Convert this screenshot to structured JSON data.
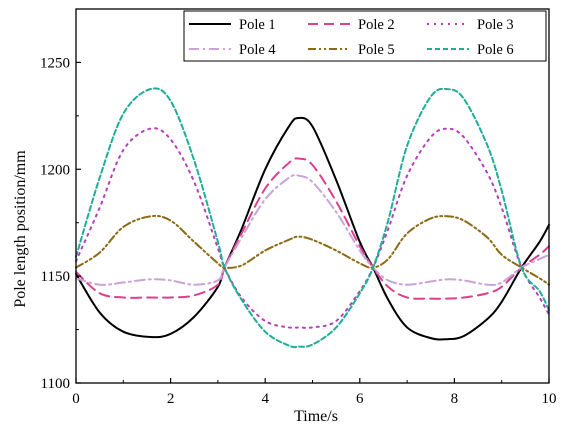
{
  "chart_data": {
    "type": "line",
    "title": "",
    "xlabel": "Time/s",
    "ylabel": "Pole length position/mm",
    "xlim": [
      0,
      10
    ],
    "ylim": [
      1100,
      1275
    ],
    "xticks": [
      0,
      2,
      4,
      6,
      8,
      10
    ],
    "yticks": [
      1100,
      1150,
      1200,
      1250
    ],
    "legend_position": "top-right",
    "grid": false,
    "series": [
      {
        "name": "Pole 1",
        "color": "#000000",
        "dash": "solid",
        "x": [
          0,
          0.5,
          1,
          1.57,
          2,
          2.5,
          3,
          3.14,
          3.5,
          4,
          4.5,
          4.71,
          5,
          5.5,
          6,
          6.28,
          6.6,
          7,
          7.5,
          7.85,
          8.2,
          8.7,
          9,
          9.42,
          9.8,
          10
        ],
        "y": [
          1151,
          1133,
          1124,
          1121.5,
          1123,
          1131,
          1145,
          1154,
          1172,
          1200,
          1220,
          1224,
          1220,
          1195,
          1166,
          1154,
          1139,
          1126,
          1121,
          1120.5,
          1122,
          1130,
          1138,
          1154,
          1166,
          1174
        ]
      },
      {
        "name": "Pole 2",
        "color": "#d9418c",
        "dash": "10,6",
        "x": [
          0,
          0.5,
          1,
          1.57,
          2,
          2.5,
          3,
          3.14,
          3.5,
          4,
          4.5,
          4.71,
          5,
          5.5,
          6,
          6.28,
          6.6,
          7,
          7.5,
          7.85,
          8.2,
          8.7,
          9,
          9.42,
          9.8,
          10
        ],
        "y": [
          1152,
          1142,
          1140,
          1140,
          1140,
          1141,
          1146,
          1154,
          1170,
          1191,
          1203,
          1205,
          1202,
          1185,
          1164,
          1154,
          1145,
          1140,
          1139.5,
          1139.5,
          1140,
          1142,
          1145,
          1154,
          1160,
          1164
        ]
      },
      {
        "name": "Pole 3",
        "color": "#b63ebd",
        "dash": "2,5",
        "x": [
          0,
          0.5,
          1,
          1.57,
          2,
          2.5,
          3,
          3.14,
          3.5,
          4,
          4.5,
          4.71,
          5,
          5.5,
          6,
          6.28,
          6.6,
          7,
          7.5,
          7.85,
          8.2,
          8.7,
          9,
          9.42,
          9.8,
          10
        ],
        "y": [
          1157,
          1182,
          1209,
          1219,
          1214,
          1194,
          1163,
          1154,
          1140,
          1129,
          1126,
          1126,
          1126,
          1129,
          1143,
          1154,
          1172,
          1197,
          1215,
          1219,
          1215,
          1198,
          1182,
          1154,
          1140,
          1132
        ]
      },
      {
        "name": "Pole 4",
        "color": "#c9a3d9",
        "dash": "10,4,2,4",
        "x": [
          0,
          0.5,
          1,
          1.57,
          2,
          2.5,
          3,
          3.14,
          3.5,
          4,
          4.5,
          4.71,
          5,
          5.5,
          6,
          6.28,
          6.6,
          7,
          7.5,
          7.85,
          8.2,
          8.7,
          9,
          9.42,
          9.8,
          10
        ],
        "y": [
          1149,
          1146,
          1147,
          1148.5,
          1148,
          1146,
          1148,
          1154,
          1168,
          1186,
          1196,
          1197,
          1194,
          1180,
          1162,
          1154,
          1148,
          1146,
          1147.5,
          1148.5,
          1148,
          1146,
          1147,
          1154,
          1158,
          1160
        ]
      },
      {
        "name": "Pole 5",
        "color": "#8b6a14",
        "dash": "8,3,2,3,2,3",
        "x": [
          0,
          0.5,
          1,
          1.57,
          2,
          2.5,
          3,
          3.14,
          3.5,
          4,
          4.5,
          4.71,
          5,
          5.5,
          6,
          6.28,
          6.6,
          7,
          7.5,
          7.85,
          8.2,
          8.7,
          9,
          9.42,
          9.8,
          10
        ],
        "y": [
          1154,
          1161,
          1173,
          1178,
          1176,
          1166,
          1156,
          1154,
          1155,
          1162,
          1167,
          1168.5,
          1167,
          1162,
          1156,
          1154,
          1158,
          1170,
          1177,
          1178,
          1176,
          1168,
          1160,
          1154,
          1149,
          1146
        ]
      },
      {
        "name": "Pole 6",
        "color": "#1fae95",
        "dash": "5,3",
        "x": [
          0,
          0.5,
          1,
          1.57,
          2,
          2.5,
          3,
          3.14,
          3.5,
          4,
          4.5,
          4.71,
          5,
          5.5,
          6,
          6.28,
          6.6,
          7,
          7.5,
          7.85,
          8.2,
          8.7,
          9,
          9.42,
          9.8,
          10
        ],
        "y": [
          1159,
          1196,
          1226,
          1237.5,
          1232,
          1204,
          1166,
          1154,
          1139,
          1124,
          1117.5,
          1117,
          1118,
          1126,
          1142,
          1154,
          1176,
          1211,
          1234,
          1237.5,
          1233,
          1211,
          1190,
          1154,
          1143,
          1134
        ]
      }
    ]
  }
}
